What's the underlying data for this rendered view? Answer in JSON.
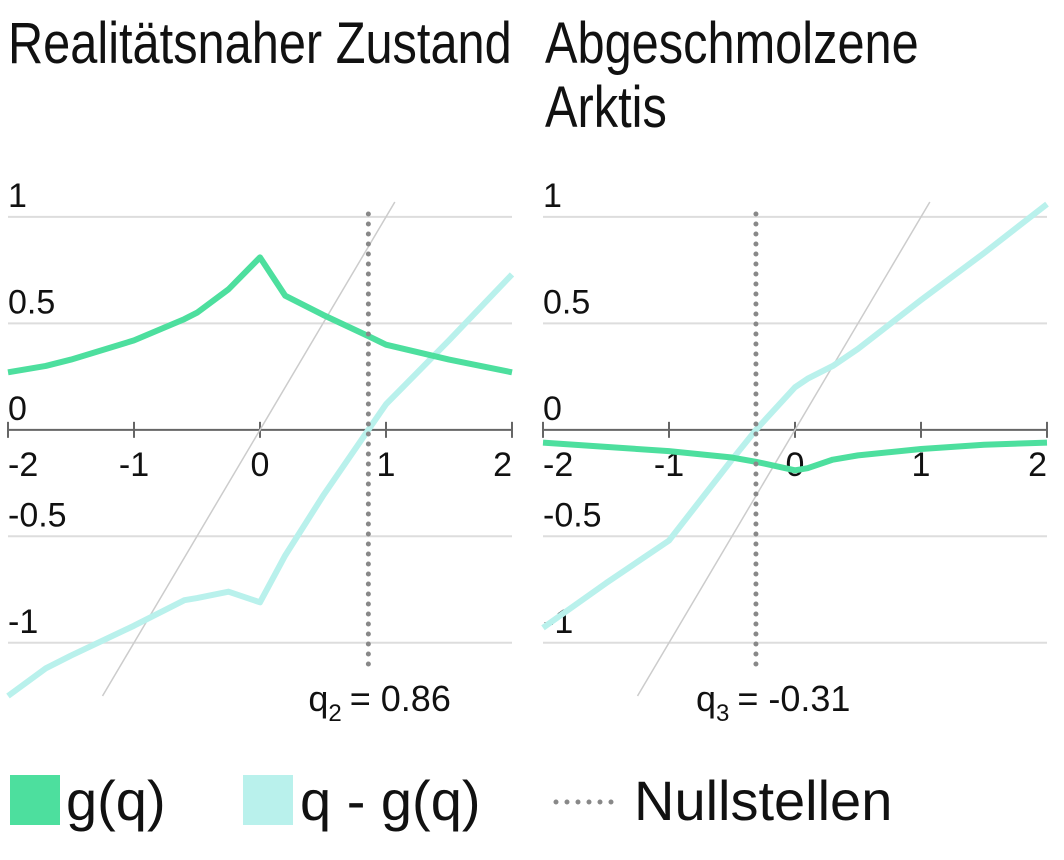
{
  "chart_data": [
    {
      "type": "line",
      "title": "Realitätsnaher Zustand",
      "x": [
        -2,
        -1.7,
        -1.5,
        -1,
        -0.6,
        -0.5,
        -0.25,
        0,
        0.2,
        0.5,
        0.86,
        1,
        1.5,
        2
      ],
      "series": [
        {
          "name": "g(q)",
          "color": "#4ddf9e",
          "values": [
            0.27,
            0.3,
            0.33,
            0.42,
            0.52,
            0.55,
            0.66,
            0.81,
            0.63,
            0.54,
            0.44,
            0.4,
            0.33,
            0.27
          ]
        },
        {
          "name": "q - g(q)",
          "color": "#b9f1ec",
          "values": [
            -1.25,
            -1.12,
            -1.06,
            -0.92,
            -0.8,
            -0.79,
            -0.76,
            -0.81,
            -0.59,
            -0.31,
            0,
            0.12,
            0.42,
            0.73
          ]
        }
      ],
      "xlim": [
        -2,
        2
      ],
      "xticks": [
        -2,
        -1,
        0,
        1,
        2
      ],
      "ylim": [
        -1.25,
        1.07
      ],
      "yticks": [
        -1,
        -0.5,
        0,
        0.5,
        1
      ],
      "grid": true,
      "diagonal": true,
      "root": {
        "value": 0.86,
        "symbol": "q",
        "subscript": "2",
        "label": "= 0.86"
      }
    },
    {
      "type": "line",
      "title": "Abgeschmolzene Arktis",
      "x": [
        -2,
        -1.5,
        -1,
        -0.5,
        -0.31,
        0,
        0.1,
        0.3,
        0.5,
        1,
        1.5,
        2
      ],
      "series": [
        {
          "name": "g(q)",
          "color": "#4ddf9e",
          "values": [
            -0.06,
            -0.08,
            -0.1,
            -0.13,
            -0.15,
            -0.19,
            -0.18,
            -0.14,
            -0.12,
            -0.09,
            -0.07,
            -0.06
          ]
        },
        {
          "name": "q - g(q)",
          "color": "#b9f1ec",
          "values": [
            -0.93,
            -0.72,
            -0.52,
            -0.14,
            0,
            0.2,
            0.24,
            0.3,
            0.38,
            0.61,
            0.83,
            1.06
          ]
        }
      ],
      "xlim": [
        -2,
        2
      ],
      "xticks": [
        -2,
        -1,
        0,
        1,
        2
      ],
      "ylim": [
        -1.25,
        1.07
      ],
      "yticks": [
        -1,
        -0.5,
        0,
        0.5,
        1
      ],
      "grid": true,
      "diagonal": true,
      "root": {
        "value": -0.31,
        "symbol": "q",
        "subscript": "3",
        "label": "= -0.31"
      }
    }
  ],
  "legend": {
    "root_label": "Nullstellen",
    "position": "bottom"
  }
}
